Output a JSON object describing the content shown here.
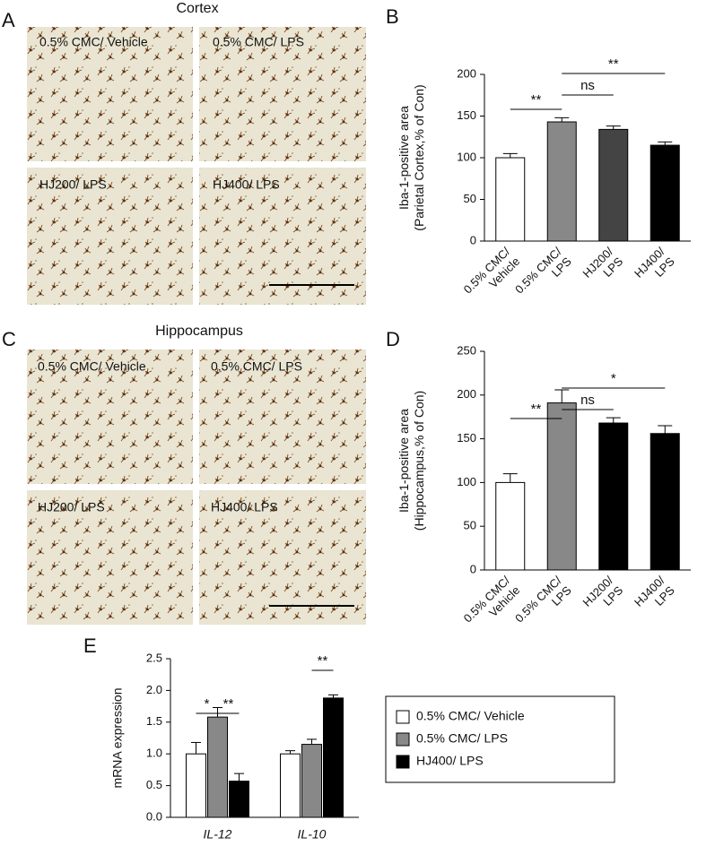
{
  "panel_labels": [
    "A",
    "B",
    "C",
    "D",
    "E"
  ],
  "micrographs": [
    {
      "title": "Cortex",
      "labels": [
        "0.5% CMC/ Vehicle",
        "0.5% CMC/ LPS",
        "HJ200/ LPS",
        "HJ400/ LPS"
      ]
    },
    {
      "title": "Hippocampus",
      "labels": [
        "0.5% CMC/ Vehicle",
        "0.5% CMC/ LPS",
        "HJ200/ LPS",
        "HJ400/ LPS"
      ]
    }
  ],
  "chart_data": [
    {
      "type": "bar",
      "ylabel": [
        "Iba-1-positive area",
        "(Parietal Cortex,% of Con)"
      ],
      "categories": [
        [
          "0.5% CMC/",
          "Vehicle"
        ],
        [
          "0.5% CMC/",
          "LPS"
        ],
        [
          "HJ200/",
          "LPS"
        ],
        [
          "HJ400/",
          "LPS"
        ]
      ],
      "values": [
        100,
        143,
        134,
        115
      ],
      "errors": [
        5,
        5,
        4,
        4
      ],
      "colors": [
        "#ffffff",
        "#888888",
        "#444444",
        "#000000"
      ],
      "ylim": [
        0,
        200
      ],
      "yticks": [
        0,
        50,
        100,
        150,
        200
      ],
      "annotations": [
        "**",
        "ns",
        "**"
      ]
    },
    {
      "type": "bar",
      "ylabel": [
        "Iba-1-positive area",
        "(Hippocampus,% of Con)"
      ],
      "categories": [
        [
          "0.5% CMC/",
          "Vehicle"
        ],
        [
          "0.5% CMC/",
          "LPS"
        ],
        [
          "HJ200/",
          "LPS"
        ],
        [
          "HJ400/",
          "LPS"
        ]
      ],
      "values": [
        100,
        191,
        168,
        156
      ],
      "errors": [
        10,
        15,
        6,
        9
      ],
      "colors": [
        "#ffffff",
        "#888888",
        "#000000",
        "#000000"
      ],
      "ylim": [
        0,
        250
      ],
      "yticks": [
        0,
        50,
        100,
        150,
        200,
        250
      ],
      "annotations": [
        "**",
        "ns",
        "*"
      ]
    },
    {
      "type": "grouped-bar",
      "ylabel": [
        "mRNA expression"
      ],
      "categories": [
        "IL-12",
        "IL-10"
      ],
      "series": [
        {
          "name": "0.5% CMC/ Vehicle",
          "color": "#ffffff",
          "values": [
            1.0,
            1.0
          ],
          "errors": [
            0.18,
            0.05
          ]
        },
        {
          "name": "0.5% CMC/ LPS",
          "color": "#888888",
          "values": [
            1.58,
            1.15
          ],
          "errors": [
            0.15,
            0.08
          ]
        },
        {
          "name": "HJ400/ LPS",
          "color": "#000000",
          "values": [
            0.57,
            1.88
          ],
          "errors": [
            0.12,
            0.05
          ]
        }
      ],
      "ylim": [
        0,
        2.5
      ],
      "yticks": [
        {
          "value": 0,
          "label": "0.0"
        },
        0.5,
        {
          "value": 1,
          "label": "1.0"
        },
        1.5,
        {
          "value": 2,
          "label": "2.0"
        },
        2.5
      ],
      "annotations": [
        "*",
        "**",
        "**"
      ]
    }
  ]
}
